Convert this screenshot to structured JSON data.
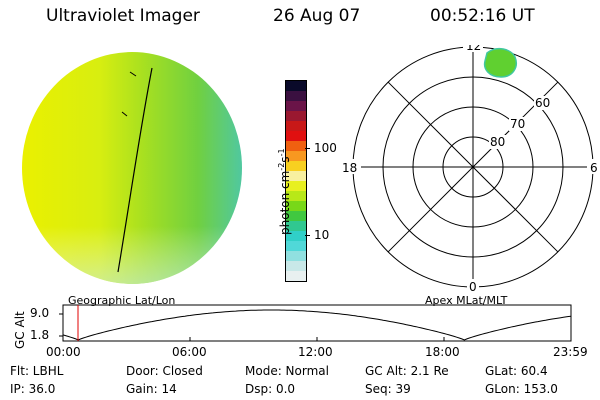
{
  "header": {
    "title": "Ultraviolet Imager",
    "date": "26 Aug 07",
    "time": "00:52:16 UT"
  },
  "colorbar": {
    "unit_label": "photon cm",
    "unit_exp_a": "-2",
    "unit_s": "s",
    "unit_exp_b": "-1",
    "ticks": [
      "100",
      "10"
    ],
    "colors": [
      "#0a0a2a",
      "#3a1040",
      "#6a1448",
      "#9a1830",
      "#c81818",
      "#e01010",
      "#f06010",
      "#f89820",
      "#f8d020",
      "#f8f0a0",
      "#e8f020",
      "#b8e818",
      "#78d818",
      "#40c840",
      "#30c890",
      "#30d0c8",
      "#50d8d8",
      "#90e0e0",
      "#c8e8e8",
      "#e8f0f0"
    ]
  },
  "polar": {
    "lat_labels": [
      "60",
      "70",
      "80"
    ],
    "mlt_labels": [
      "12",
      "18",
      "6",
      "0"
    ]
  },
  "panel_labels": {
    "left": "Geographic Lat/Lon",
    "right": "Apex MLat/MLT"
  },
  "timeline": {
    "y_label": "GC Alt",
    "y_ticks": [
      "9.0",
      "1.8"
    ],
    "x_ticks": [
      "00:00",
      "06:00",
      "12:00",
      "18:00",
      "23:59"
    ],
    "current_marker_color": "#e00000"
  },
  "info": {
    "flt": "Flt: LBHL",
    "door": "Door: Closed",
    "mode": "Mode: Normal",
    "gc_alt": "GC Alt: 2.1 Re",
    "glat": "GLat:  60.4",
    "ip": "IP: 36.0",
    "gain": "Gain: 14",
    "dsp": "Dsp:    0.0",
    "seq": "Seq: 39",
    "glon": "GLon: 153.0"
  }
}
